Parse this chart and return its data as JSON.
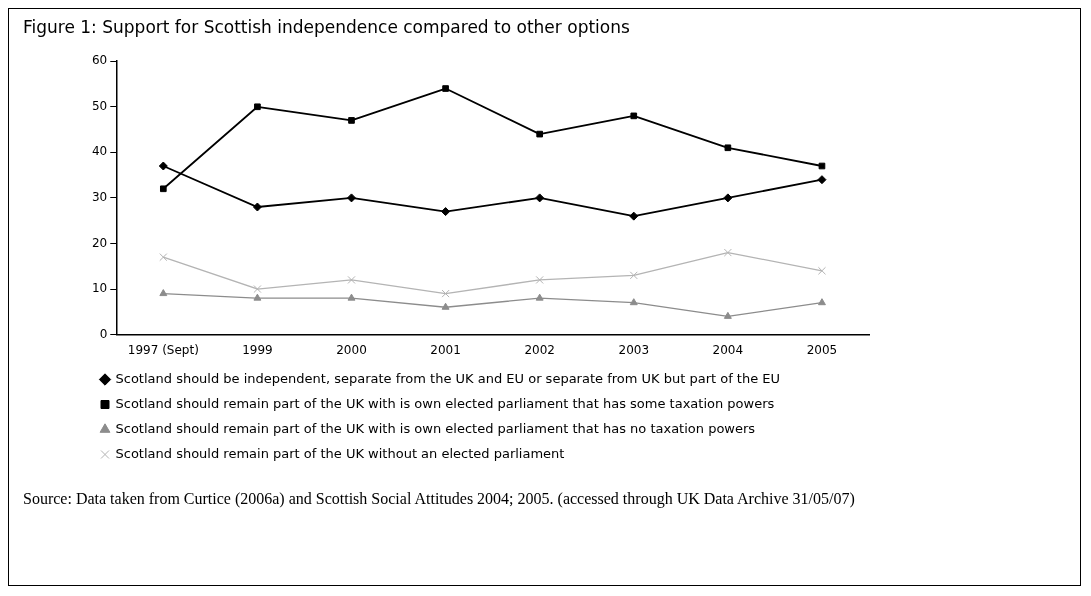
{
  "chart_data": {
    "type": "line",
    "title": "Figure 1: Support for Scottish independence compared to other options",
    "categories": [
      "1997 (Sept)",
      "1999",
      "2000",
      "2001",
      "2002",
      "2003",
      "2004",
      "2005"
    ],
    "series": [
      {
        "name": "Scotland should be independent, separate from the UK and EU or separate from UK but part of the EU",
        "color": "#000000",
        "marker": "diamond",
        "values": [
          37,
          28,
          30,
          27,
          30,
          26,
          30,
          34
        ]
      },
      {
        "name": "Scotland should remain part of the UK with is own elected parliament that has some taxation powers",
        "color": "#000000",
        "marker": "square",
        "values": [
          32,
          50,
          47,
          54,
          44,
          48,
          41,
          37
        ]
      },
      {
        "name": "Scotland should remain part of the UK with is own elected parliament that has no taxation powers",
        "color": "#8c8c8c",
        "marker": "triangle",
        "values": [
          9,
          8,
          8,
          6,
          8,
          7,
          4,
          7
        ]
      },
      {
        "name": "Scotland should remain part of the UK without an elected parliament",
        "color": "#b4b4b4",
        "marker": "cross",
        "values": [
          17,
          10,
          12,
          9,
          12,
          13,
          18,
          14
        ]
      }
    ],
    "ylim": [
      0,
      60
    ],
    "yticks": [
      0,
      10,
      20,
      30,
      40,
      50,
      60
    ],
    "grid": false,
    "legend": "bottom",
    "annotations": [
      "Source: Data taken from Curtice (2006a) and Scottish Social Attitudes 2004; 2005. (accessed through UK Data Archive 31/05/07)"
    ]
  }
}
